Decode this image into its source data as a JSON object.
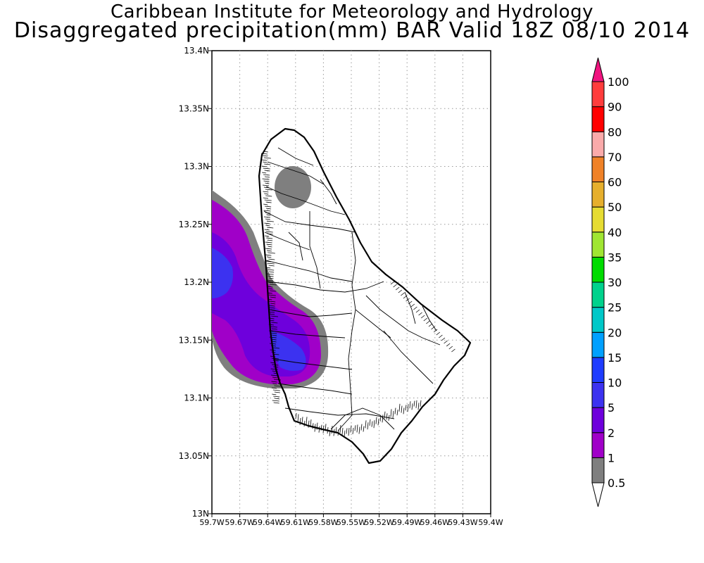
{
  "title_line1": "Caribbean Institute for Meteorology and Hydrology",
  "title_line2": "Disaggregated precipitation(mm) BAR Valid 18Z 08/10 2014",
  "map": {
    "lon_range": [
      -59.7,
      -59.4
    ],
    "lat_range": [
      13.0,
      13.4
    ],
    "x_tick_labels": [
      "59.7W",
      "59.67W",
      "59.64W",
      "59.61W",
      "59.58W",
      "59.55W",
      "59.52W",
      "59.49W",
      "59.46W",
      "59.43W",
      "59.4W"
    ],
    "y_tick_labels": [
      "13N",
      "13.05N",
      "13.1N",
      "13.15N",
      "13.2N",
      "13.25N",
      "13.3N",
      "13.35N",
      "13.4N"
    ],
    "grid": true
  },
  "colorbar": {
    "levels": [
      {
        "label": "0.5",
        "color": "#ffffff"
      },
      {
        "label": "1",
        "color": "#7f7f7f"
      },
      {
        "label": "2",
        "color": "#a000c8"
      },
      {
        "label": "5",
        "color": "#6e00dc"
      },
      {
        "label": "10",
        "color": "#3c32f0"
      },
      {
        "label": "15",
        "color": "#1e3cff"
      },
      {
        "label": "20",
        "color": "#00a0ff"
      },
      {
        "label": "25",
        "color": "#00c8c8"
      },
      {
        "label": "30",
        "color": "#00d28c"
      },
      {
        "label": "35",
        "color": "#00dc00"
      },
      {
        "label": "40",
        "color": "#a0e632"
      },
      {
        "label": "50",
        "color": "#e6dc32"
      },
      {
        "label": "60",
        "color": "#e6af2d"
      },
      {
        "label": "70",
        "color": "#f08228"
      },
      {
        "label": "80",
        "color": "#faaaaa"
      },
      {
        "label": "90",
        "color": "#ff0000"
      },
      {
        "label": "100",
        "color": "#ff3c3c"
      }
    ],
    "top_arrow_color": "#f0147f"
  },
  "precip_colors": {
    "gray": "#7f7f7f",
    "purple": "#a000c8",
    "violet": "#6e00dc",
    "blue": "#3c32f0"
  }
}
